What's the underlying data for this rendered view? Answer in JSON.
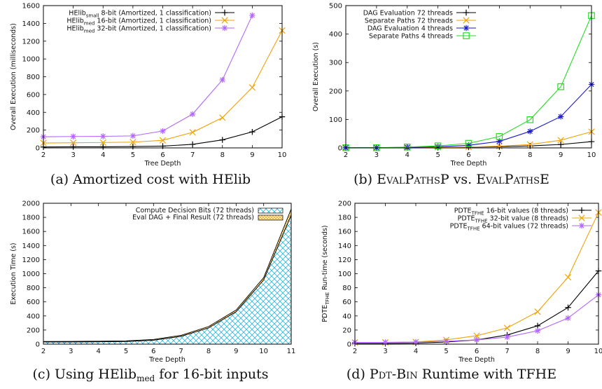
{
  "charts": [
    {
      "id": "a",
      "caption": {
        "prefix": "(a) Amortized cost with HElib",
        "sub": "",
        "suffix": ""
      },
      "chart_data": {
        "type": "line",
        "xlabel": "Tree Depth",
        "ylabel": "Overall Execution (milliseconds)",
        "xlim": [
          2,
          10
        ],
        "ylim": [
          0,
          1600
        ],
        "xticks": [
          2,
          3,
          4,
          5,
          6,
          7,
          8,
          9,
          10
        ],
        "yticks": [
          0,
          200,
          400,
          600,
          800,
          1000,
          1200,
          1400,
          1600
        ],
        "x": [
          2,
          3,
          4,
          5,
          6,
          7,
          8,
          9,
          10
        ],
        "legend_position": "top-left",
        "series": [
          {
            "name": "HElib",
            "name_sub": "small",
            "name_rest": " 8-bit (Amortized, 1 classification)",
            "color": "#000000",
            "marker": "plus",
            "values": [
              10,
              12,
              12,
              15,
              20,
              40,
              90,
              180,
              350
            ]
          },
          {
            "name": "HElib",
            "name_sub": "med",
            "name_rest": " 16-bit (Amortized, 1 classification)",
            "color": "#f0a30a",
            "marker": "x",
            "values": [
              55,
              58,
              60,
              65,
              85,
              175,
              340,
              680,
              1320
            ]
          },
          {
            "name": "HElib",
            "name_sub": "med",
            "name_rest": " 32-bit (Amortized, 1 classification)",
            "color": "#b266ff",
            "marker": "star",
            "values": [
              125,
              128,
              130,
              135,
              190,
              380,
              765,
              1490,
              null
            ]
          }
        ]
      }
    },
    {
      "id": "b",
      "caption": {
        "prefix": "(b) ",
        "sc1": "EvalPathsP",
        "mid": " vs. ",
        "sc2": "EvalPathsE"
      },
      "chart_data": {
        "type": "line",
        "xlabel": "Tree Depth",
        "ylabel": "Overall Execution (s)",
        "xlim": [
          2,
          10
        ],
        "ylim": [
          0,
          500
        ],
        "xticks": [
          2,
          3,
          4,
          5,
          6,
          7,
          8,
          9,
          10
        ],
        "yticks": [
          0,
          100,
          200,
          300,
          400,
          500
        ],
        "x": [
          2,
          3,
          4,
          5,
          6,
          7,
          8,
          9,
          10
        ],
        "legend_position": "top-left",
        "series": [
          {
            "name": "DAG Evaluation 72 threads",
            "color": "#000000",
            "marker": "plus",
            "values": [
              0.5,
              0.5,
              1,
              1.5,
              2.5,
              4,
              7,
              12,
              22
            ]
          },
          {
            "name": "Separate Paths 72 threads",
            "color": "#f0a30a",
            "marker": "x",
            "values": [
              0.5,
              0.5,
              1,
              2,
              3,
              6,
              12,
              27,
              57
            ]
          },
          {
            "name": "DAG Evaluation 4 threads",
            "color": "#1a1ad0",
            "marker": "star",
            "values": [
              0.5,
              0.5,
              2,
              4,
              9,
              23,
              58,
              110,
              223
            ]
          },
          {
            "name": "Separate Paths 4 threads",
            "color": "#22dd22",
            "marker": "square",
            "values": [
              0.5,
              0.5,
              3,
              7,
              16,
              40,
              99,
              215,
              465
            ]
          }
        ]
      }
    },
    {
      "id": "c",
      "caption": {
        "prefix": "(c) Using HElib",
        "sub": "med",
        "suffix": " for 16-bit inputs"
      },
      "chart_data": {
        "type": "area",
        "stacked": true,
        "xlabel": "Tree Depth",
        "ylabel": "Execution Time (s)",
        "xlim": [
          2,
          11
        ],
        "ylim": [
          0,
          2000
        ],
        "xticks": [
          2,
          3,
          4,
          5,
          6,
          7,
          8,
          9,
          10,
          11
        ],
        "yticks": [
          0,
          200,
          400,
          600,
          800,
          1000,
          1200,
          1400,
          1600,
          1800,
          2000
        ],
        "x": [
          2,
          3,
          4,
          5,
          6,
          7,
          8,
          9,
          10,
          11
        ],
        "legend_position": "top-right",
        "series": [
          {
            "name": "Compute Decision Bits (72 threads)",
            "color": "#29b6d9",
            "pattern": "diag-cross",
            "values": [
              30,
              31,
              33,
              37,
              55,
              110,
              230,
              460,
              910,
              1830
            ]
          },
          {
            "name": "Eval DAG + Final Result (72 threads)",
            "color": "#f0a30a",
            "pattern": "grid",
            "values": [
              8,
              8,
              9,
              10,
              12,
              15,
              20,
              25,
              35,
              90
            ]
          }
        ]
      }
    },
    {
      "id": "d",
      "caption": {
        "prefix": "(d) ",
        "sc1": "Pdt-Bin",
        "mid": " Runtime with TFHE",
        "sc2": ""
      },
      "chart_data": {
        "type": "line",
        "xlabel": "Tree Depth",
        "ylabel": "PDTE",
        "ylabel_sub": "TFHE",
        "ylabel_rest": " Run-time (seconds)",
        "xlim": [
          2,
          10
        ],
        "ylim": [
          0,
          200
        ],
        "xticks": [
          2,
          3,
          4,
          5,
          6,
          7,
          8,
          9,
          10
        ],
        "yticks": [
          0,
          20,
          40,
          60,
          80,
          100,
          120,
          140,
          160,
          180,
          200
        ],
        "x": [
          2,
          3,
          4,
          5,
          6,
          7,
          8,
          9,
          10
        ],
        "legend_position": "top-right",
        "series": [
          {
            "name": "PDTE",
            "name_sub": "TFHE",
            "name_rest": " 16-bit values (8 threads)",
            "color": "#000000",
            "marker": "plus",
            "values": [
              1,
              1,
              1.5,
              3,
              6,
              13,
              26,
              52,
              104
            ]
          },
          {
            "name": "PDTE",
            "name_sub": "TFHE",
            "name_rest": " 32-bit value (8 threads)",
            "color": "#f0a30a",
            "marker": "x",
            "values": [
              2.5,
              2.5,
              3,
              6,
              12,
              23,
              46,
              95,
              187
            ]
          },
          {
            "name": "PDTE",
            "name_sub": "TFHE",
            "name_rest": " 64-bit values (72 threads)",
            "color": "#b266ff",
            "marker": "star",
            "values": [
              2.5,
              2.5,
              3,
              4,
              6,
              10,
              19,
              37,
              70
            ]
          }
        ]
      }
    }
  ]
}
